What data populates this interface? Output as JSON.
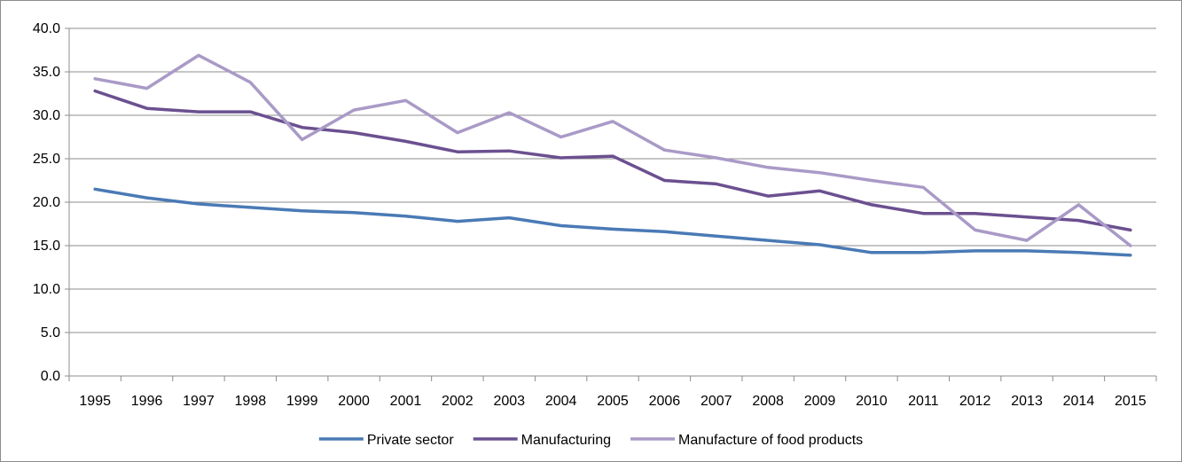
{
  "chart_data": {
    "type": "line",
    "title": "",
    "xlabel": "",
    "ylabel": "",
    "ylim": [
      0,
      40
    ],
    "y_ticks": [
      "0.0",
      "5.0",
      "10.0",
      "15.0",
      "20.0",
      "25.0",
      "30.0",
      "35.0",
      "40.0"
    ],
    "grid": true,
    "legend_position": "bottom",
    "categories": [
      "1995",
      "1996",
      "1997",
      "1998",
      "1999",
      "2000",
      "2001",
      "2002",
      "2003",
      "2004",
      "2005",
      "2006",
      "2007",
      "2008",
      "2009",
      "2010",
      "2011",
      "2012",
      "2013",
      "2014",
      "2015"
    ],
    "series": [
      {
        "name": "Private sector",
        "color": "#4a7ab5",
        "values": [
          21.5,
          20.5,
          19.8,
          19.4,
          19.0,
          18.8,
          18.4,
          17.8,
          18.2,
          17.3,
          16.9,
          16.6,
          16.1,
          15.6,
          15.1,
          14.2,
          14.2,
          14.4,
          14.4,
          14.2,
          13.9
        ]
      },
      {
        "name": "Manufacturing",
        "color": "#6b5090",
        "values": [
          32.8,
          30.8,
          30.4,
          30.4,
          28.6,
          28.0,
          27.0,
          25.8,
          25.9,
          25.1,
          25.3,
          22.5,
          22.1,
          20.7,
          21.3,
          19.7,
          18.7,
          18.7,
          18.3,
          17.9,
          16.8
        ]
      },
      {
        "name": "Manufacture of food products",
        "color": "#a99ac7",
        "values": [
          34.2,
          33.1,
          36.9,
          33.8,
          27.2,
          30.6,
          31.7,
          28.0,
          30.3,
          27.5,
          29.3,
          26.0,
          25.1,
          24.0,
          23.4,
          22.5,
          21.7,
          16.8,
          15.6,
          19.7,
          15.0
        ]
      }
    ]
  }
}
